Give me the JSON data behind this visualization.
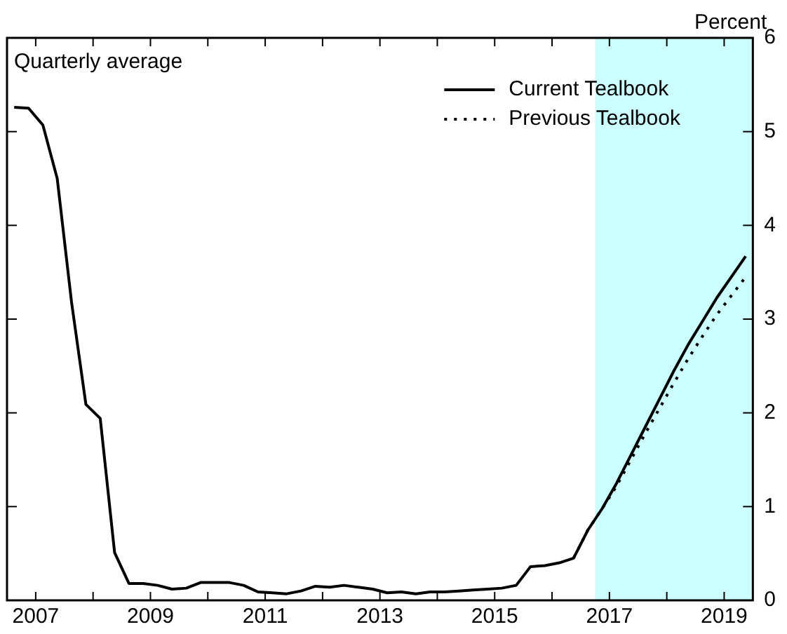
{
  "chart_data": {
    "type": "line",
    "subtitle": "Quarterly average",
    "ylabel": "Percent",
    "xlim": [
      2007,
      2020
    ],
    "ylim": [
      0,
      6
    ],
    "yticks": [
      0,
      1,
      2,
      3,
      4,
      5,
      6
    ],
    "xticks": [
      {
        "value": 2007.5,
        "label": "2007"
      },
      {
        "value": 2008.5,
        "label": null
      },
      {
        "value": 2009.5,
        "label": "2009"
      },
      {
        "value": 2010.5,
        "label": null
      },
      {
        "value": 2011.5,
        "label": "2011"
      },
      {
        "value": 2012.5,
        "label": null
      },
      {
        "value": 2013.5,
        "label": "2013"
      },
      {
        "value": 2014.5,
        "label": null
      },
      {
        "value": 2015.5,
        "label": "2015"
      },
      {
        "value": 2016.5,
        "label": null
      },
      {
        "value": 2017.5,
        "label": "2017"
      },
      {
        "value": 2018.5,
        "label": null
      },
      {
        "value": 2019.5,
        "label": "2019"
      }
    ],
    "grid": false,
    "legend": "top right",
    "bands": [
      {
        "axis": "x",
        "from": 2017.25,
        "to": 2020,
        "color": "#ccffff"
      }
    ],
    "series": [
      {
        "name": "Current Tealbook",
        "color": "#000000",
        "line_style": "solid",
        "x": [
          2007.125,
          2007.375,
          2007.625,
          2007.875,
          2008.125,
          2008.375,
          2008.625,
          2008.875,
          2009.125,
          2009.375,
          2009.625,
          2009.875,
          2010.125,
          2010.375,
          2010.625,
          2010.875,
          2011.125,
          2011.375,
          2011.625,
          2011.875,
          2012.125,
          2012.375,
          2012.625,
          2012.875,
          2013.125,
          2013.375,
          2013.625,
          2013.875,
          2014.125,
          2014.375,
          2014.625,
          2014.875,
          2015.125,
          2015.375,
          2015.625,
          2015.875,
          2016.125,
          2016.375,
          2016.625,
          2016.875,
          2017.125,
          2017.375,
          2017.625,
          2017.875,
          2018.125,
          2018.375,
          2018.625,
          2018.875,
          2019.125,
          2019.375,
          2019.625,
          2019.875
        ],
        "values": [
          5.26,
          5.25,
          5.07,
          4.5,
          3.18,
          2.09,
          1.94,
          0.51,
          0.18,
          0.18,
          0.16,
          0.12,
          0.13,
          0.19,
          0.19,
          0.19,
          0.16,
          0.09,
          0.08,
          0.07,
          0.1,
          0.15,
          0.14,
          0.16,
          0.14,
          0.12,
          0.08,
          0.09,
          0.07,
          0.09,
          0.09,
          0.1,
          0.11,
          0.12,
          0.13,
          0.16,
          0.36,
          0.37,
          0.4,
          0.45,
          0.75,
          0.98,
          1.25,
          1.55,
          1.85,
          2.15,
          2.45,
          2.73,
          2.98,
          3.23,
          3.45,
          3.67
        ]
      },
      {
        "name": "Previous Tealbook",
        "color": "#000000",
        "line_style": "dotted",
        "x": [
          2016.875,
          2017.125,
          2017.375,
          2017.625,
          2017.875,
          2018.125,
          2018.375,
          2018.625,
          2018.875,
          2019.125,
          2019.375,
          2019.625,
          2019.875
        ],
        "values": [
          0.45,
          0.75,
          0.98,
          1.22,
          1.5,
          1.78,
          2.05,
          2.32,
          2.58,
          2.82,
          3.05,
          3.25,
          3.45
        ]
      }
    ]
  }
}
